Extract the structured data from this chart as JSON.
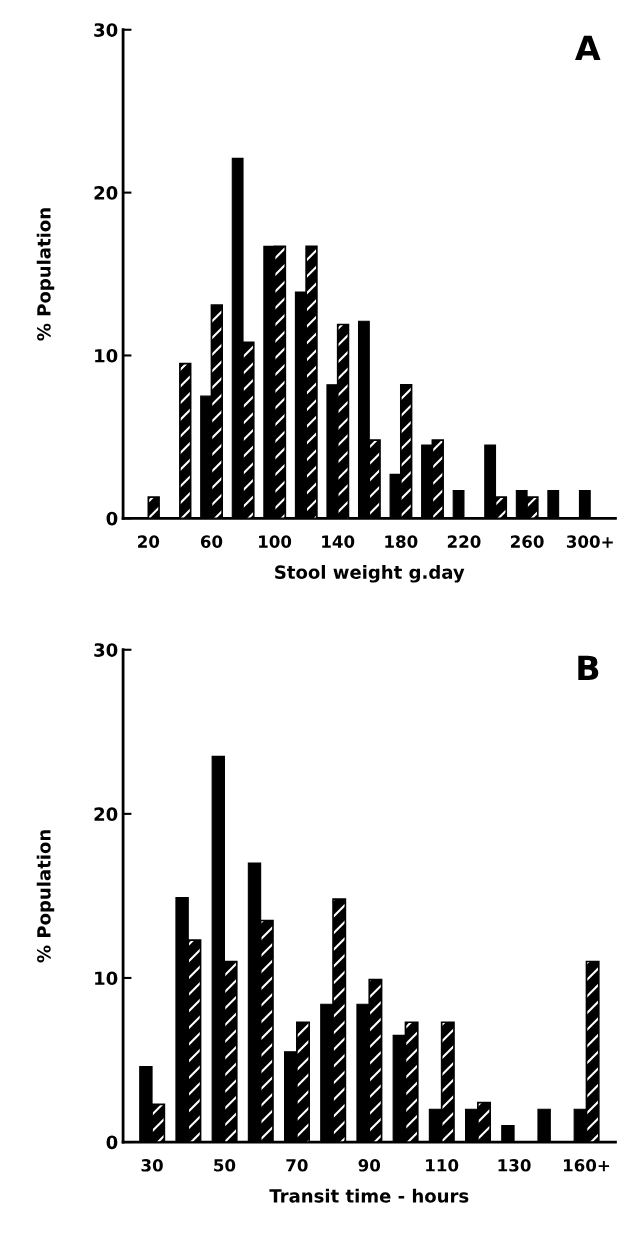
{
  "chart_data": [
    {
      "type": "bar",
      "title": "A",
      "xlabel": "Stool weight g.day",
      "ylabel": "% Population",
      "categories": [
        "20",
        null,
        "60",
        null,
        "100",
        null,
        "140",
        null,
        "180",
        null,
        "220",
        null,
        "260",
        null,
        "300+"
      ],
      "series": [
        {
          "color": "#000000",
          "values": [
            null,
            null,
            7.5,
            22.1,
            16.7,
            13.9,
            8.2,
            12.1,
            2.7,
            4.5,
            1.7,
            4.5,
            1.7,
            1.7,
            1.7
          ]
        },
        {
          "color": "#000000",
          "values": [
            1.3,
            9.5,
            13.1,
            10.8,
            16.7,
            16.7,
            11.9,
            4.8,
            8.2,
            4.8,
            null,
            1.3,
            1.3,
            null,
            null
          ]
        }
      ],
      "ylim": [
        0,
        30
      ],
      "yticks": [
        0,
        10,
        20,
        30
      ],
      "grid": false,
      "legend": false
    },
    {
      "type": "bar",
      "title": "B",
      "xlabel": "Transit time - hours",
      "ylabel": "% Population",
      "categories": [
        "30",
        null,
        "50",
        null,
        "70",
        null,
        "90",
        null,
        "110",
        null,
        "130",
        null,
        "160+"
      ],
      "series": [
        {
          "color": "#000000",
          "values": [
            4.6,
            14.9,
            23.5,
            17.0,
            5.5,
            8.4,
            8.4,
            6.5,
            2.0,
            2.0,
            1.0,
            2.0,
            2.0
          ]
        },
        {
          "color": "#000000",
          "values": [
            2.3,
            12.3,
            11.0,
            13.5,
            7.3,
            14.8,
            9.9,
            7.3,
            7.3,
            2.4,
            null,
            null,
            11.0
          ]
        }
      ],
      "ylim": [
        0,
        30
      ],
      "yticks": [
        0,
        10,
        20,
        30
      ],
      "grid": false,
      "legend": false
    }
  ]
}
